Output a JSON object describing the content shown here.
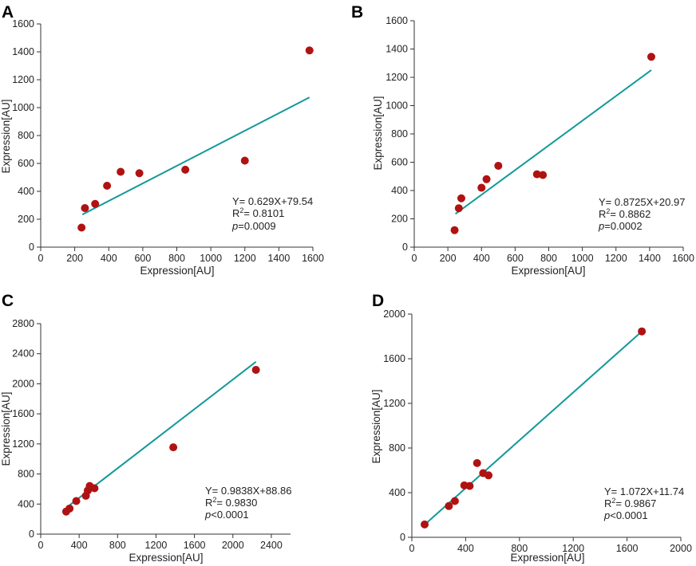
{
  "colors": {
    "point": "#b01212",
    "line": "#14999a",
    "axis": "#333333"
  },
  "chart_data": [
    {
      "type": "scatter",
      "panel": "A",
      "xlabel": "Expression[AU]",
      "ylabel": "Expression[AU]",
      "xlim": [
        0,
        1600
      ],
      "ylim": [
        0,
        1600
      ],
      "xticks": [
        0,
        200,
        400,
        600,
        800,
        1000,
        1200,
        1400,
        1600
      ],
      "yticks": [
        0,
        200,
        400,
        600,
        800,
        1000,
        1200,
        1400,
        1600
      ],
      "points": [
        [
          240,
          140
        ],
        [
          260,
          280
        ],
        [
          320,
          310
        ],
        [
          390,
          440
        ],
        [
          470,
          540
        ],
        [
          580,
          530
        ],
        [
          850,
          555
        ],
        [
          1200,
          620
        ],
        [
          1580,
          1410
        ]
      ],
      "fit": {
        "slope": 0.629,
        "intercept": 79.54,
        "x_range": [
          245,
          1580
        ]
      },
      "annotation": {
        "equation": "Y= 0.629X+79.54",
        "r2_prefix": "R",
        "r2_sup": "2",
        "r2_value": "= 0.8101",
        "p_symbol": "p",
        "p_value": "=0.0009"
      }
    },
    {
      "type": "scatter",
      "panel": "B",
      "xlabel": "Expression[AU]",
      "ylabel": "Expression[AU]",
      "xlim": [
        0,
        1600
      ],
      "ylim": [
        0,
        1600
      ],
      "xticks": [
        0,
        200,
        400,
        600,
        800,
        1000,
        1200,
        1400,
        1600
      ],
      "yticks": [
        0,
        200,
        400,
        600,
        800,
        1000,
        1200,
        1400,
        1600
      ],
      "points": [
        [
          240,
          120
        ],
        [
          265,
          275
        ],
        [
          280,
          345
        ],
        [
          400,
          420
        ],
        [
          430,
          480
        ],
        [
          500,
          575
        ],
        [
          730,
          515
        ],
        [
          765,
          510
        ],
        [
          1410,
          1345
        ]
      ],
      "fit": {
        "slope": 0.8725,
        "intercept": 20.97,
        "x_range": [
          245,
          1410
        ]
      },
      "annotation": {
        "equation": "Y= 0.8725X+20.97",
        "r2_prefix": "R",
        "r2_sup": "2",
        "r2_value": "= 0.8862",
        "p_symbol": "p",
        "p_value": "=0.0002"
      }
    },
    {
      "type": "scatter",
      "panel": "C",
      "xlabel": "Expression[AU]",
      "ylabel": "Expression[AU]",
      "xlim": [
        0,
        2600
      ],
      "ylim": [
        0,
        2800
      ],
      "xticks": [
        0,
        400,
        800,
        1200,
        1600,
        2000,
        2400
      ],
      "yticks": [
        0,
        400,
        800,
        1200,
        1600,
        2000,
        2400,
        2800
      ],
      "points": [
        [
          265,
          300
        ],
        [
          300,
          340
        ],
        [
          370,
          440
        ],
        [
          470,
          510
        ],
        [
          490,
          580
        ],
        [
          510,
          640
        ],
        [
          560,
          610
        ],
        [
          1380,
          1155
        ],
        [
          2240,
          2185
        ]
      ],
      "fit": {
        "slope": 0.9838,
        "intercept": 88.86,
        "x_range": [
          270,
          2240
        ]
      },
      "annotation": {
        "equation": "Y= 0.9838X+88.86",
        "r2_prefix": "R",
        "r2_sup": "2",
        "r2_value": "= 0.9830",
        "p_symbol": "p",
        "p_value": "<0.0001"
      }
    },
    {
      "type": "scatter",
      "panel": "D",
      "xlabel": "Expression[AU]",
      "ylabel": "Expression[AU]",
      "xlim": [
        0,
        2000
      ],
      "ylim": [
        0,
        2000
      ],
      "xticks": [
        0,
        400,
        800,
        1200,
        1600,
        2000
      ],
      "yticks": [
        0,
        400,
        800,
        1200,
        1600,
        2000
      ],
      "points": [
        [
          95,
          115
        ],
        [
          275,
          280
        ],
        [
          320,
          325
        ],
        [
          390,
          465
        ],
        [
          430,
          460
        ],
        [
          485,
          665
        ],
        [
          530,
          575
        ],
        [
          570,
          555
        ],
        [
          1710,
          1845
        ]
      ],
      "fit": {
        "slope": 1.072,
        "intercept": 11.74,
        "x_range": [
          95,
          1710
        ]
      },
      "annotation": {
        "equation": "Y= 1.072X+11.74",
        "r2_prefix": "R",
        "r2_sup": "2",
        "r2_value": "= 0.9867",
        "p_symbol": "p",
        "p_value": "<0.0001"
      }
    }
  ]
}
